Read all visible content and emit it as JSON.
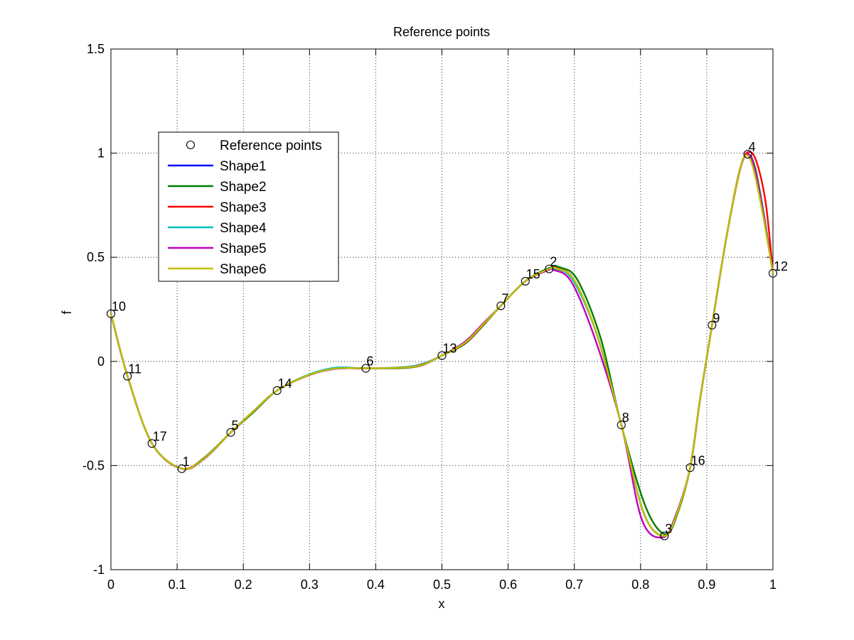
{
  "chart_data": {
    "type": "line",
    "title": "Reference points",
    "xlabel": "x",
    "ylabel": "f",
    "xlim": [
      0,
      1
    ],
    "ylim": [
      -1,
      1.5
    ],
    "xticks": [
      0,
      0.1,
      0.2,
      0.3,
      0.4,
      0.5,
      0.6,
      0.7,
      0.8,
      0.9,
      1
    ],
    "xtick_labels": [
      "0",
      "0.1",
      "0.2",
      "0.3",
      "0.4",
      "0.5",
      "0.6",
      "0.7",
      "0.8",
      "0.9",
      "1"
    ],
    "yticks": [
      -1,
      -0.5,
      0,
      0.5,
      1,
      1.5
    ],
    "ytick_labels": [
      "-1",
      "-0.5",
      "0",
      "0.5",
      "1",
      "1.5"
    ],
    "grid": true,
    "legend_position": "upper-left",
    "reference_points": {
      "name": "Reference points",
      "points": [
        {
          "label": "1",
          "x": 0.107,
          "y": -0.515
        },
        {
          "label": "2",
          "x": 0.662,
          "y": 0.444
        },
        {
          "label": "3",
          "x": 0.836,
          "y": -0.838
        },
        {
          "label": "4",
          "x": 0.962,
          "y": 0.995
        },
        {
          "label": "5",
          "x": 0.181,
          "y": -0.341
        },
        {
          "label": "6",
          "x": 0.385,
          "y": -0.033
        },
        {
          "label": "7",
          "x": 0.589,
          "y": 0.267
        },
        {
          "label": "8",
          "x": 0.771,
          "y": -0.305
        },
        {
          "label": "9",
          "x": 0.908,
          "y": 0.174
        },
        {
          "label": "10",
          "x": 0.0,
          "y": 0.229
        },
        {
          "label": "11",
          "x": 0.025,
          "y": -0.071
        },
        {
          "label": "12",
          "x": 1.0,
          "y": 0.423
        },
        {
          "label": "13",
          "x": 0.5,
          "y": 0.028
        },
        {
          "label": "14",
          "x": 0.251,
          "y": -0.14
        },
        {
          "label": "15",
          "x": 0.626,
          "y": 0.385
        },
        {
          "label": "16",
          "x": 0.875,
          "y": -0.51
        },
        {
          "label": "17",
          "x": 0.062,
          "y": -0.394
        }
      ]
    },
    "series": [
      {
        "name": "Shape1",
        "color": "#0000ff",
        "values": [
          [
            0,
            0.229
          ],
          [
            0.025,
            -0.071
          ],
          [
            0.062,
            -0.394
          ],
          [
            0.107,
            -0.515
          ],
          [
            0.14,
            -0.47
          ],
          [
            0.181,
            -0.341
          ],
          [
            0.215,
            -0.24
          ],
          [
            0.251,
            -0.14
          ],
          [
            0.3,
            -0.065
          ],
          [
            0.34,
            -0.035
          ],
          [
            0.385,
            -0.033
          ],
          [
            0.44,
            -0.03
          ],
          [
            0.47,
            -0.015
          ],
          [
            0.5,
            0.028
          ],
          [
            0.535,
            0.09
          ],
          [
            0.563,
            0.18
          ],
          [
            0.589,
            0.267
          ],
          [
            0.626,
            0.385
          ],
          [
            0.662,
            0.444
          ],
          [
            0.675,
            0.445
          ],
          [
            0.7,
            0.39
          ],
          [
            0.735,
            0.12
          ],
          [
            0.771,
            -0.305
          ],
          [
            0.805,
            -0.73
          ],
          [
            0.836,
            -0.838
          ],
          [
            0.855,
            -0.73
          ],
          [
            0.875,
            -0.51
          ],
          [
            0.89,
            -0.18
          ],
          [
            0.908,
            0.174
          ],
          [
            0.93,
            0.6
          ],
          [
            0.95,
            0.92
          ],
          [
            0.962,
            0.995
          ],
          [
            0.972,
            0.93
          ],
          [
            0.985,
            0.72
          ],
          [
            1.0,
            0.423
          ]
        ]
      },
      {
        "name": "Shape2",
        "color": "#007f00",
        "values": [
          [
            0,
            0.229
          ],
          [
            0.025,
            -0.071
          ],
          [
            0.062,
            -0.394
          ],
          [
            0.107,
            -0.515
          ],
          [
            0.14,
            -0.465
          ],
          [
            0.181,
            -0.341
          ],
          [
            0.215,
            -0.245
          ],
          [
            0.251,
            -0.14
          ],
          [
            0.3,
            -0.062
          ],
          [
            0.34,
            -0.033
          ],
          [
            0.385,
            -0.033
          ],
          [
            0.44,
            -0.032
          ],
          [
            0.47,
            -0.018
          ],
          [
            0.5,
            0.028
          ],
          [
            0.535,
            0.085
          ],
          [
            0.563,
            0.175
          ],
          [
            0.589,
            0.267
          ],
          [
            0.626,
            0.385
          ],
          [
            0.662,
            0.448
          ],
          [
            0.68,
            0.45
          ],
          [
            0.705,
            0.39
          ],
          [
            0.74,
            0.11
          ],
          [
            0.771,
            -0.305
          ],
          [
            0.808,
            -0.7
          ],
          [
            0.838,
            -0.83
          ],
          [
            0.857,
            -0.72
          ],
          [
            0.875,
            -0.51
          ],
          [
            0.89,
            -0.18
          ],
          [
            0.908,
            0.174
          ],
          [
            0.93,
            0.6
          ],
          [
            0.95,
            0.92
          ],
          [
            0.962,
            0.995
          ],
          [
            0.973,
            0.93
          ],
          [
            0.986,
            0.71
          ],
          [
            1.0,
            0.423
          ]
        ]
      },
      {
        "name": "Shape3",
        "color": "#ff0000",
        "values": [
          [
            0,
            0.229
          ],
          [
            0.025,
            -0.071
          ],
          [
            0.062,
            -0.394
          ],
          [
            0.107,
            -0.515
          ],
          [
            0.145,
            -0.455
          ],
          [
            0.181,
            -0.341
          ],
          [
            0.215,
            -0.24
          ],
          [
            0.251,
            -0.14
          ],
          [
            0.3,
            -0.064
          ],
          [
            0.34,
            -0.034
          ],
          [
            0.385,
            -0.033
          ],
          [
            0.44,
            -0.03
          ],
          [
            0.47,
            -0.017
          ],
          [
            0.5,
            0.028
          ],
          [
            0.535,
            0.088
          ],
          [
            0.563,
            0.178
          ],
          [
            0.589,
            0.267
          ],
          [
            0.626,
            0.385
          ],
          [
            0.662,
            0.444
          ],
          [
            0.675,
            0.446
          ],
          [
            0.7,
            0.39
          ],
          [
            0.735,
            0.12
          ],
          [
            0.771,
            -0.305
          ],
          [
            0.805,
            -0.73
          ],
          [
            0.836,
            -0.838
          ],
          [
            0.855,
            -0.73
          ],
          [
            0.875,
            -0.51
          ],
          [
            0.89,
            -0.18
          ],
          [
            0.908,
            0.174
          ],
          [
            0.93,
            0.6
          ],
          [
            0.952,
            0.94
          ],
          [
            0.966,
            1.005
          ],
          [
            0.978,
            0.93
          ],
          [
            0.99,
            0.74
          ],
          [
            1.0,
            0.423
          ]
        ]
      },
      {
        "name": "Shape4",
        "color": "#00bfbf",
        "values": [
          [
            0,
            0.229
          ],
          [
            0.025,
            -0.071
          ],
          [
            0.062,
            -0.394
          ],
          [
            0.107,
            -0.515
          ],
          [
            0.14,
            -0.47
          ],
          [
            0.181,
            -0.341
          ],
          [
            0.215,
            -0.24
          ],
          [
            0.251,
            -0.14
          ],
          [
            0.3,
            -0.062
          ],
          [
            0.34,
            -0.03
          ],
          [
            0.385,
            -0.033
          ],
          [
            0.44,
            -0.028
          ],
          [
            0.47,
            -0.012
          ],
          [
            0.5,
            0.028
          ],
          [
            0.535,
            0.09
          ],
          [
            0.563,
            0.18
          ],
          [
            0.589,
            0.267
          ],
          [
            0.626,
            0.385
          ],
          [
            0.662,
            0.444
          ],
          [
            0.672,
            0.444
          ],
          [
            0.698,
            0.39
          ],
          [
            0.735,
            0.12
          ],
          [
            0.771,
            -0.305
          ],
          [
            0.805,
            -0.73
          ],
          [
            0.836,
            -0.838
          ],
          [
            0.855,
            -0.73
          ],
          [
            0.875,
            -0.51
          ],
          [
            0.89,
            -0.18
          ],
          [
            0.908,
            0.174
          ],
          [
            0.93,
            0.6
          ],
          [
            0.95,
            0.92
          ],
          [
            0.962,
            0.995
          ],
          [
            0.972,
            0.93
          ],
          [
            0.985,
            0.72
          ],
          [
            1.0,
            0.423
          ]
        ]
      },
      {
        "name": "Shape5",
        "color": "#bf00bf",
        "values": [
          [
            0,
            0.229
          ],
          [
            0.025,
            -0.071
          ],
          [
            0.062,
            -0.394
          ],
          [
            0.107,
            -0.515
          ],
          [
            0.14,
            -0.47
          ],
          [
            0.181,
            -0.341
          ],
          [
            0.215,
            -0.24
          ],
          [
            0.251,
            -0.14
          ],
          [
            0.3,
            -0.065
          ],
          [
            0.34,
            -0.035
          ],
          [
            0.385,
            -0.033
          ],
          [
            0.44,
            -0.03
          ],
          [
            0.47,
            -0.015
          ],
          [
            0.5,
            0.028
          ],
          [
            0.535,
            0.095
          ],
          [
            0.563,
            0.185
          ],
          [
            0.589,
            0.267
          ],
          [
            0.626,
            0.385
          ],
          [
            0.662,
            0.44
          ],
          [
            0.668,
            0.44
          ],
          [
            0.695,
            0.385
          ],
          [
            0.73,
            0.12
          ],
          [
            0.771,
            -0.305
          ],
          [
            0.802,
            -0.76
          ],
          [
            0.834,
            -0.845
          ],
          [
            0.853,
            -0.74
          ],
          [
            0.875,
            -0.51
          ],
          [
            0.89,
            -0.18
          ],
          [
            0.908,
            0.174
          ],
          [
            0.93,
            0.6
          ],
          [
            0.95,
            0.92
          ],
          [
            0.962,
            0.995
          ],
          [
            0.972,
            0.93
          ],
          [
            0.985,
            0.72
          ],
          [
            1.0,
            0.423
          ]
        ]
      },
      {
        "name": "Shape6",
        "color": "#bfbf00",
        "values": [
          [
            0,
            0.229
          ],
          [
            0.025,
            -0.071
          ],
          [
            0.062,
            -0.394
          ],
          [
            0.107,
            -0.515
          ],
          [
            0.14,
            -0.468
          ],
          [
            0.181,
            -0.341
          ],
          [
            0.215,
            -0.24
          ],
          [
            0.251,
            -0.14
          ],
          [
            0.3,
            -0.064
          ],
          [
            0.34,
            -0.034
          ],
          [
            0.385,
            -0.033
          ],
          [
            0.44,
            -0.03
          ],
          [
            0.47,
            -0.016
          ],
          [
            0.5,
            0.028
          ],
          [
            0.535,
            0.09
          ],
          [
            0.563,
            0.18
          ],
          [
            0.589,
            0.267
          ],
          [
            0.626,
            0.385
          ],
          [
            0.662,
            0.444
          ],
          [
            0.674,
            0.445
          ],
          [
            0.7,
            0.39
          ],
          [
            0.735,
            0.12
          ],
          [
            0.771,
            -0.305
          ],
          [
            0.805,
            -0.73
          ],
          [
            0.836,
            -0.838
          ],
          [
            0.855,
            -0.73
          ],
          [
            0.875,
            -0.51
          ],
          [
            0.89,
            -0.18
          ],
          [
            0.908,
            0.174
          ],
          [
            0.93,
            0.6
          ],
          [
            0.95,
            0.92
          ],
          [
            0.96,
            0.99
          ],
          [
            0.97,
            0.93
          ],
          [
            0.984,
            0.72
          ],
          [
            1.0,
            0.423
          ]
        ]
      }
    ]
  }
}
